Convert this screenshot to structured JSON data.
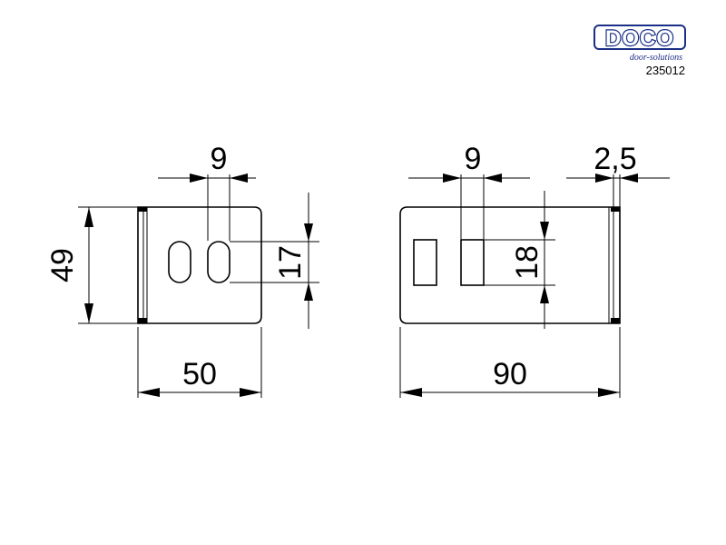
{
  "header": {
    "brand": "DOCO",
    "tagline": "door-solutions",
    "article_number": "235012",
    "brand_color": "#1b2f86"
  },
  "left_view": {
    "hole_spacing": "9",
    "height": "49",
    "hole_height": "17",
    "width": "50"
  },
  "right_view": {
    "slot_spacing": "9",
    "thickness": "2,5",
    "slot_height": "18",
    "width": "90"
  }
}
